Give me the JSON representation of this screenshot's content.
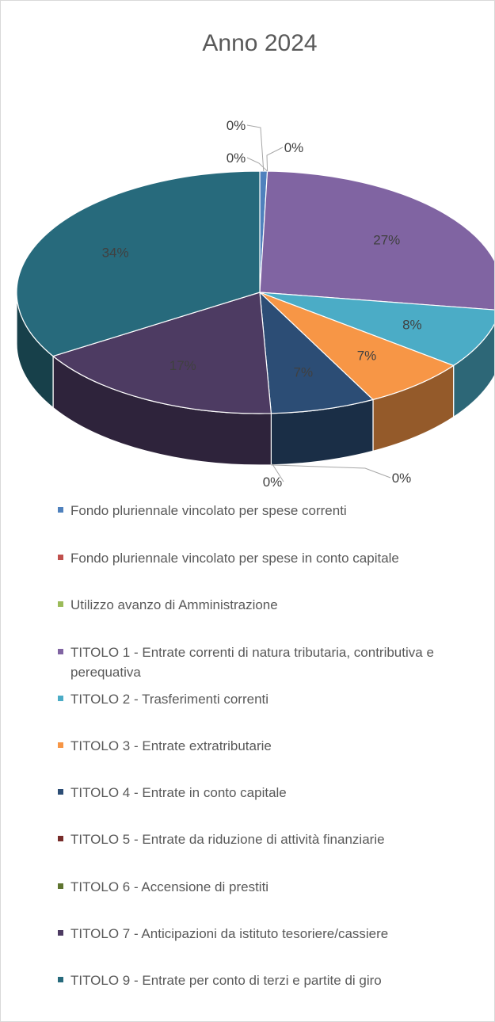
{
  "chart_data": {
    "type": "pie",
    "title": "Anno 2024",
    "categories": [
      "Fondo pluriennale vincolato per spese correnti",
      "Fondo pluriennale vincolato per spese in conto capitale",
      "Utilizzo avanzo di Amministrazione",
      "TITOLO 1 - Entrate correnti di natura tributaria, contributiva e perequativa",
      "TITOLO 2 - Trasferimenti correnti",
      "TITOLO 3 - Entrate extratributarie",
      "TITOLO 4 - Entrate in conto capitale",
      "TITOLO 5 - Entrate da riduzione di attività finanziarie",
      "TITOLO 6 - Accensione di prestiti",
      "TITOLO 7 - Anticipazioni da istituto tesoriere/cassiere",
      "TITOLO 9 - Entrate per conto di terzi e partite di giro"
    ],
    "values": [
      0.5,
      0,
      0,
      27,
      8,
      7,
      7,
      0,
      0,
      17,
      34
    ],
    "value_labels": [
      "0%",
      "0%",
      "0%",
      "27%",
      "8%",
      "7%",
      "7%",
      "0%",
      "0%",
      "17%",
      "34%"
    ],
    "colors": [
      "#4f81bd",
      "#c0504d",
      "#9bbb59",
      "#8064a2",
      "#4bacc6",
      "#f79646",
      "#2c4d75",
      "#772c2a",
      "#5f7530",
      "#4d3b62",
      "#276a7c"
    ]
  }
}
